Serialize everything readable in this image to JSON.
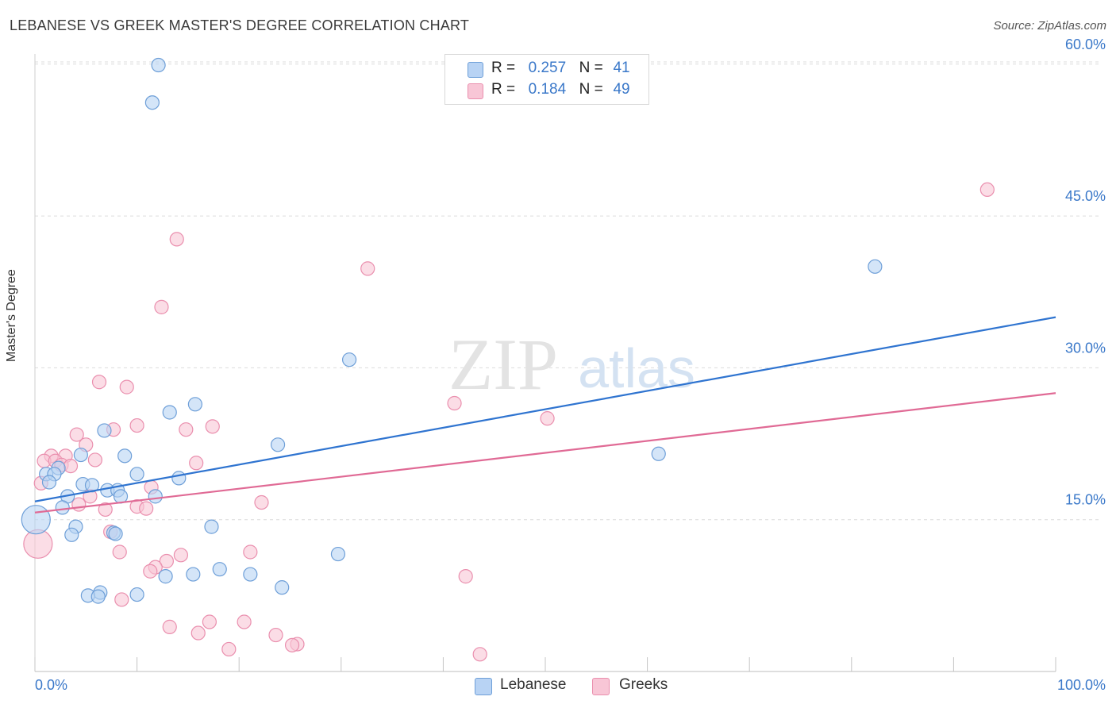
{
  "header": {
    "title": "LEBANESE VS GREEK MASTER'S DEGREE CORRELATION CHART",
    "source": "Source: ZipAtlas.com"
  },
  "legend": {
    "r_label": "R =",
    "n_label": "N =",
    "series": [
      {
        "name": "Lebanese",
        "r": "0.257",
        "n": "41"
      },
      {
        "name": "Greeks",
        "r": "0.184",
        "n": "49"
      }
    ]
  },
  "watermark": {
    "zip": "ZIP",
    "atlas": "atlas"
  },
  "colors": {
    "lebanese_fill": "#b8d3f4",
    "lebanese_stroke": "#6e9fd8",
    "lebanese_line": "#2f74d0",
    "greeks_fill": "#f8c6d6",
    "greeks_stroke": "#ea8fae",
    "greeks_line": "#e06a95",
    "axis_label": "#3a78c9",
    "grid": "#dcdcdc"
  },
  "chart_data": {
    "type": "scatter",
    "title": "LEBANESE VS GREEK MASTER'S DEGREE CORRELATION CHART",
    "xlabel": "",
    "ylabel": "Master's Degree",
    "xlim": [
      0,
      100
    ],
    "ylim": [
      0,
      61
    ],
    "x_tick_labels": [
      "0.0%",
      "100.0%"
    ],
    "y_ticks": [
      15,
      30,
      45,
      60
    ],
    "y_tick_labels": [
      "15.0%",
      "30.0%",
      "45.0%",
      "60.0%"
    ],
    "grid": true,
    "series": [
      {
        "name": "Lebanese",
        "trend": {
          "x": [
            0,
            100
          ],
          "y": [
            16.8,
            35.0
          ]
        },
        "points": [
          {
            "x": 12.1,
            "y": 59.9
          },
          {
            "x": 11.5,
            "y": 56.2
          },
          {
            "x": 82.3,
            "y": 40.0
          },
          {
            "x": 30.8,
            "y": 30.8
          },
          {
            "x": 15.7,
            "y": 26.4
          },
          {
            "x": 13.2,
            "y": 25.6
          },
          {
            "x": 6.8,
            "y": 23.8
          },
          {
            "x": 23.8,
            "y": 22.4
          },
          {
            "x": 61.1,
            "y": 21.5
          },
          {
            "x": 8.8,
            "y": 21.3
          },
          {
            "x": 4.5,
            "y": 21.4
          },
          {
            "x": 2.3,
            "y": 20.1
          },
          {
            "x": 1.1,
            "y": 19.5
          },
          {
            "x": 1.9,
            "y": 19.5
          },
          {
            "x": 10.0,
            "y": 19.5
          },
          {
            "x": 14.1,
            "y": 19.1
          },
          {
            "x": 1.4,
            "y": 18.7
          },
          {
            "x": 4.7,
            "y": 18.5
          },
          {
            "x": 5.6,
            "y": 18.4
          },
          {
            "x": 7.1,
            "y": 17.9
          },
          {
            "x": 8.1,
            "y": 17.9
          },
          {
            "x": 3.2,
            "y": 17.3
          },
          {
            "x": 8.4,
            "y": 17.3
          },
          {
            "x": 11.8,
            "y": 17.3
          },
          {
            "x": 2.7,
            "y": 16.2
          },
          {
            "x": 0.1,
            "y": 15.0
          },
          {
            "x": 4.0,
            "y": 14.3
          },
          {
            "x": 17.3,
            "y": 14.3
          },
          {
            "x": 7.7,
            "y": 13.7
          },
          {
            "x": 3.6,
            "y": 13.5
          },
          {
            "x": 29.7,
            "y": 11.6
          },
          {
            "x": 18.1,
            "y": 10.1
          },
          {
            "x": 12.8,
            "y": 9.4
          },
          {
            "x": 15.5,
            "y": 9.6
          },
          {
            "x": 21.1,
            "y": 9.6
          },
          {
            "x": 24.2,
            "y": 8.3
          },
          {
            "x": 6.4,
            "y": 7.8
          },
          {
            "x": 10.0,
            "y": 7.6
          },
          {
            "x": 5.2,
            "y": 7.5
          },
          {
            "x": 6.2,
            "y": 7.4
          },
          {
            "x": 7.9,
            "y": 13.6
          }
        ]
      },
      {
        "name": "Greeks",
        "trend": {
          "x": [
            0,
            100
          ],
          "y": [
            15.7,
            27.5
          ]
        },
        "points": [
          {
            "x": 93.3,
            "y": 47.6
          },
          {
            "x": 13.9,
            "y": 42.7
          },
          {
            "x": 32.6,
            "y": 39.8
          },
          {
            "x": 12.4,
            "y": 36.0
          },
          {
            "x": 6.3,
            "y": 28.6
          },
          {
            "x": 9.0,
            "y": 28.1
          },
          {
            "x": 41.1,
            "y": 26.5
          },
          {
            "x": 50.2,
            "y": 25.0
          },
          {
            "x": 10.0,
            "y": 24.3
          },
          {
            "x": 17.4,
            "y": 24.2
          },
          {
            "x": 7.7,
            "y": 23.9
          },
          {
            "x": 14.8,
            "y": 23.9
          },
          {
            "x": 4.1,
            "y": 23.4
          },
          {
            "x": 5.0,
            "y": 22.4
          },
          {
            "x": 1.6,
            "y": 21.3
          },
          {
            "x": 3.0,
            "y": 21.3
          },
          {
            "x": 0.9,
            "y": 20.8
          },
          {
            "x": 2.0,
            "y": 20.8
          },
          {
            "x": 5.9,
            "y": 20.9
          },
          {
            "x": 15.8,
            "y": 20.6
          },
          {
            "x": 2.6,
            "y": 20.4
          },
          {
            "x": 3.5,
            "y": 20.3
          },
          {
            "x": 0.6,
            "y": 18.6
          },
          {
            "x": 11.4,
            "y": 18.2
          },
          {
            "x": 5.4,
            "y": 17.3
          },
          {
            "x": 22.2,
            "y": 16.7
          },
          {
            "x": 4.3,
            "y": 16.5
          },
          {
            "x": 10.0,
            "y": 16.3
          },
          {
            "x": 10.9,
            "y": 16.1
          },
          {
            "x": 6.9,
            "y": 16.0
          },
          {
            "x": 7.4,
            "y": 13.8
          },
          {
            "x": 0.3,
            "y": 12.6
          },
          {
            "x": 8.3,
            "y": 11.8
          },
          {
            "x": 21.1,
            "y": 11.8
          },
          {
            "x": 14.3,
            "y": 11.5
          },
          {
            "x": 12.9,
            "y": 10.9
          },
          {
            "x": 11.8,
            "y": 10.3
          },
          {
            "x": 11.3,
            "y": 9.9
          },
          {
            "x": 42.2,
            "y": 9.4
          },
          {
            "x": 8.5,
            "y": 7.1
          },
          {
            "x": 17.1,
            "y": 4.9
          },
          {
            "x": 20.5,
            "y": 4.9
          },
          {
            "x": 13.2,
            "y": 4.4
          },
          {
            "x": 16.0,
            "y": 3.8
          },
          {
            "x": 23.6,
            "y": 3.6
          },
          {
            "x": 25.7,
            "y": 2.7
          },
          {
            "x": 25.2,
            "y": 2.6
          },
          {
            "x": 19.0,
            "y": 2.2
          },
          {
            "x": 43.6,
            "y": 1.7
          }
        ]
      }
    ]
  }
}
